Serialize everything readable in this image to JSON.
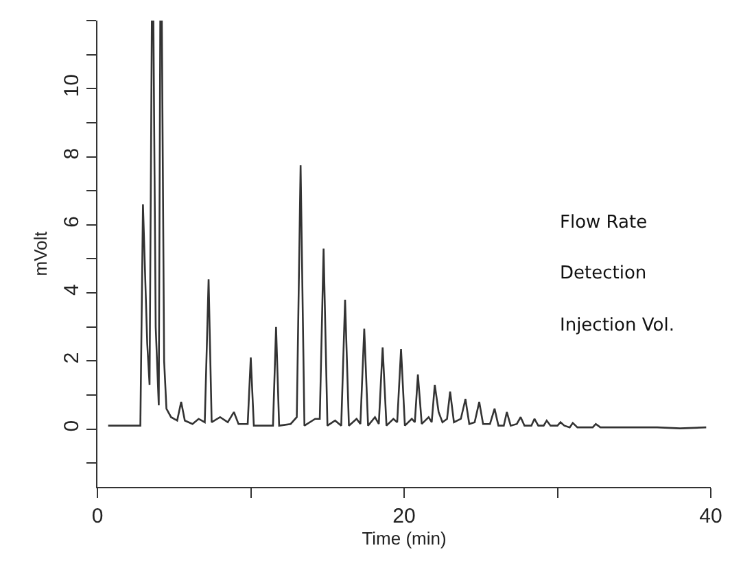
{
  "chart_data": {
    "type": "line",
    "xlabel": "Time (min)",
    "ylabel": "mVolt",
    "annotations": [
      "Flow Rate",
      "Detection",
      "Injection Vol."
    ],
    "x": [
      0.7,
      2.8,
      2.97,
      3.25,
      3.4,
      3.55,
      3.65,
      3.8,
      4.0,
      4.1,
      4.2,
      4.35,
      4.5,
      4.8,
      5.2,
      5.46,
      5.7,
      6.2,
      6.6,
      7.0,
      7.25,
      7.45,
      8.0,
      8.5,
      8.9,
      9.2,
      9.8,
      10.0,
      10.2,
      11.0,
      11.45,
      11.65,
      11.85,
      12.6,
      13.0,
      13.25,
      13.5,
      14.2,
      14.5,
      14.75,
      15.0,
      15.5,
      15.9,
      16.15,
      16.4,
      16.9,
      17.15,
      17.4,
      17.65,
      18.1,
      18.35,
      18.6,
      18.85,
      19.3,
      19.55,
      19.8,
      20.05,
      20.5,
      20.7,
      20.9,
      21.15,
      21.6,
      21.8,
      22.0,
      22.25,
      22.5,
      22.8,
      23.0,
      23.25,
      23.7,
      24.0,
      24.25,
      24.6,
      24.9,
      25.15,
      25.6,
      25.9,
      26.15,
      26.5,
      26.7,
      26.95,
      27.35,
      27.6,
      27.85,
      28.3,
      28.5,
      28.75,
      29.1,
      29.3,
      29.55,
      30.0,
      30.2,
      30.45,
      30.8,
      31.0,
      31.3,
      32.3,
      32.5,
      32.8,
      35,
      36.5,
      38,
      39.7
    ],
    "series": [
      {
        "color": "#333333",
        "values": [
          0.1,
          0.1,
          6.6,
          2.5,
          1.3,
          12,
          12,
          3,
          0.7,
          12,
          12,
          2,
          0.6,
          0.35,
          0.25,
          0.8,
          0.25,
          0.15,
          0.3,
          0.2,
          4.4,
          0.2,
          0.35,
          0.2,
          0.5,
          0.15,
          0.15,
          2.1,
          0.1,
          0.1,
          0.1,
          3.0,
          0.1,
          0.15,
          0.35,
          7.75,
          0.1,
          0.3,
          0.3,
          5.3,
          0.1,
          0.25,
          0.1,
          3.8,
          0.1,
          0.3,
          0.15,
          2.95,
          0.1,
          0.35,
          0.15,
          2.4,
          0.1,
          0.3,
          0.2,
          2.35,
          0.1,
          0.3,
          0.2,
          1.6,
          0.15,
          0.35,
          0.2,
          1.3,
          0.5,
          0.2,
          0.3,
          1.1,
          0.2,
          0.3,
          0.88,
          0.15,
          0.2,
          0.8,
          0.15,
          0.15,
          0.6,
          0.1,
          0.1,
          0.5,
          0.1,
          0.15,
          0.35,
          0.1,
          0.1,
          0.3,
          0.1,
          0.1,
          0.25,
          0.1,
          0.1,
          0.2,
          0.1,
          0.05,
          0.18,
          0.05,
          0.05,
          0.15,
          0.05,
          0.05,
          0.05,
          0.02,
          0.05
        ]
      }
    ],
    "xlim": [
      0,
      40
    ],
    "xticks": [
      0,
      {
        "value": 10,
        "label": null
      },
      20,
      {
        "value": 30,
        "label": null
      },
      40
    ],
    "ylim": [
      -1.7,
      12
    ],
    "yticks": [
      {
        "value": -1,
        "label": null
      },
      0,
      {
        "value": 1,
        "label": null
      },
      2,
      {
        "value": 3,
        "label": null
      },
      4,
      {
        "value": 5,
        "label": null
      },
      6,
      {
        "value": 7,
        "label": null
      },
      8,
      {
        "value": 9,
        "label": null
      },
      10,
      {
        "value": 11,
        "label": null
      },
      {
        "value": 12,
        "label": null
      }
    ],
    "grid": false,
    "marker": "none",
    "line_style": "solid"
  }
}
